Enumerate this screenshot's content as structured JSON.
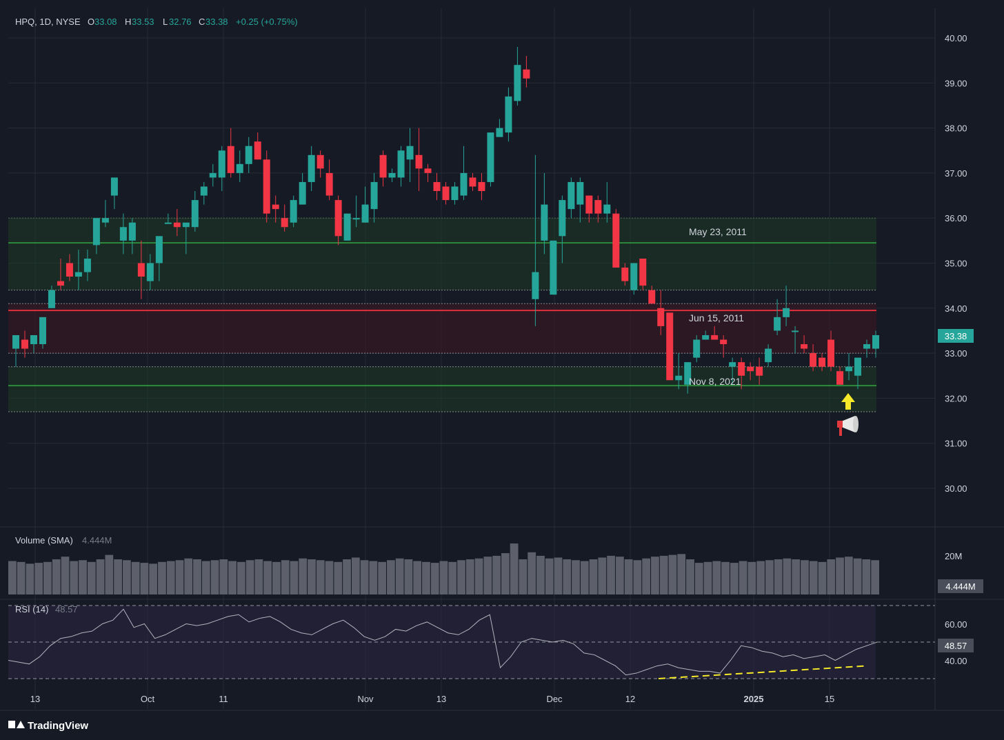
{
  "header": {
    "symbol": "HPQ, 1D, NYSE",
    "open_label": "O",
    "open": "33.08",
    "high_label": "H",
    "high": "33.53",
    "low_label": "L",
    "low": "32.76",
    "close_label": "C",
    "close": "33.38",
    "change": "+0.25 (+0.75%)"
  },
  "price_axis": {
    "ticks": [
      "40.00",
      "39.00",
      "38.00",
      "37.00",
      "36.00",
      "35.00",
      "34.00",
      "33.00",
      "32.00",
      "31.00",
      "30.00"
    ],
    "last_price": "33.38"
  },
  "zones": [
    {
      "label": "May 23, 2011",
      "color": "#1b5e20"
    },
    {
      "label": "Jun 15, 2011",
      "color": "#7b1a24"
    },
    {
      "label": "Nov 8, 2021",
      "color": "#1b5e20"
    }
  ],
  "volume_panel": {
    "title": "Volume (SMA)",
    "value": "4.444M",
    "axis_tick": "20M",
    "badge": "4.444M"
  },
  "rsi_panel": {
    "title": "RSI (14)",
    "value": "48.57",
    "ticks": [
      "60.00",
      "40.00"
    ],
    "badge": "48.57"
  },
  "time_axis": [
    "13",
    "Oct",
    "11",
    "Nov",
    "13",
    "Dec",
    "12",
    "2025",
    "15"
  ],
  "branding": {
    "logo": "TradingView"
  },
  "colors": {
    "up": "#26a69a",
    "down": "#f23645",
    "background": "#161a25",
    "grid": "#252a36",
    "text": "#d1d4dc",
    "annotation_arrow": "#f5e92a"
  },
  "icons": [
    "arrow-up-icon",
    "megaphone-icon"
  ],
  "chart_data": {
    "type": "candlestick",
    "ylim": [
      29.2,
      40.4
    ],
    "candles": [
      {
        "o": 33.1,
        "h": 33.4,
        "l": 32.7,
        "c": 33.4
      },
      {
        "o": 33.3,
        "h": 33.5,
        "l": 32.9,
        "c": 33.1
      },
      {
        "o": 33.2,
        "h": 33.4,
        "l": 33.0,
        "c": 33.4
      },
      {
        "o": 33.2,
        "h": 33.8,
        "l": 33.1,
        "c": 33.8
      },
      {
        "o": 34.0,
        "h": 34.5,
        "l": 34.0,
        "c": 34.4
      },
      {
        "o": 34.6,
        "h": 35.1,
        "l": 34.4,
        "c": 34.5
      },
      {
        "o": 35.0,
        "h": 35.2,
        "l": 34.6,
        "c": 34.7
      },
      {
        "o": 34.7,
        "h": 35.3,
        "l": 34.4,
        "c": 34.8
      },
      {
        "o": 34.8,
        "h": 35.3,
        "l": 34.6,
        "c": 35.1
      },
      {
        "o": 35.4,
        "h": 36.0,
        "l": 35.2,
        "c": 36.0
      },
      {
        "o": 35.9,
        "h": 36.4,
        "l": 35.8,
        "c": 36.0
      },
      {
        "o": 36.5,
        "h": 36.9,
        "l": 36.2,
        "c": 36.9
      },
      {
        "o": 35.5,
        "h": 36.1,
        "l": 35.2,
        "c": 35.8
      },
      {
        "o": 35.5,
        "h": 36.0,
        "l": 35.2,
        "c": 35.9
      },
      {
        "o": 35.0,
        "h": 35.5,
        "l": 34.2,
        "c": 34.7
      },
      {
        "o": 34.6,
        "h": 35.2,
        "l": 34.4,
        "c": 35.0
      },
      {
        "o": 35.0,
        "h": 35.6,
        "l": 34.6,
        "c": 35.6
      },
      {
        "o": 35.9,
        "h": 36.1,
        "l": 35.9,
        "c": 35.9
      },
      {
        "o": 35.9,
        "h": 36.2,
        "l": 35.6,
        "c": 35.8
      },
      {
        "o": 35.8,
        "h": 35.9,
        "l": 35.2,
        "c": 35.9
      },
      {
        "o": 35.8,
        "h": 36.6,
        "l": 35.7,
        "c": 36.4
      },
      {
        "o": 36.5,
        "h": 36.8,
        "l": 36.3,
        "c": 36.7
      },
      {
        "o": 36.9,
        "h": 37.2,
        "l": 36.7,
        "c": 37.0
      },
      {
        "o": 36.9,
        "h": 37.6,
        "l": 36.6,
        "c": 37.5
      },
      {
        "o": 37.6,
        "h": 38.0,
        "l": 36.9,
        "c": 37.0
      },
      {
        "o": 37.0,
        "h": 37.5,
        "l": 36.8,
        "c": 37.2
      },
      {
        "o": 37.2,
        "h": 37.8,
        "l": 37.0,
        "c": 37.6
      },
      {
        "o": 37.7,
        "h": 37.9,
        "l": 37.3,
        "c": 37.3
      },
      {
        "o": 37.3,
        "h": 37.5,
        "l": 35.9,
        "c": 36.1
      },
      {
        "o": 36.3,
        "h": 36.5,
        "l": 35.9,
        "c": 36.2
      },
      {
        "o": 36.0,
        "h": 36.3,
        "l": 35.7,
        "c": 35.8
      },
      {
        "o": 35.9,
        "h": 36.5,
        "l": 35.8,
        "c": 36.4
      },
      {
        "o": 36.3,
        "h": 37.0,
        "l": 36.3,
        "c": 36.8
      },
      {
        "o": 36.8,
        "h": 37.6,
        "l": 36.6,
        "c": 37.4
      },
      {
        "o": 37.4,
        "h": 37.5,
        "l": 36.9,
        "c": 37.1
      },
      {
        "o": 37.0,
        "h": 37.3,
        "l": 36.4,
        "c": 36.5
      },
      {
        "o": 36.4,
        "h": 36.5,
        "l": 35.4,
        "c": 35.6
      },
      {
        "o": 35.5,
        "h": 36.1,
        "l": 35.5,
        "c": 36.1
      },
      {
        "o": 36.0,
        "h": 36.5,
        "l": 35.8,
        "c": 36.0
      },
      {
        "o": 35.9,
        "h": 36.7,
        "l": 35.9,
        "c": 36.3
      },
      {
        "o": 36.2,
        "h": 37.0,
        "l": 35.9,
        "c": 36.8
      },
      {
        "o": 37.4,
        "h": 37.5,
        "l": 36.7,
        "c": 36.9
      },
      {
        "o": 36.9,
        "h": 37.1,
        "l": 36.8,
        "c": 37.0
      },
      {
        "o": 36.9,
        "h": 37.6,
        "l": 36.7,
        "c": 37.5
      },
      {
        "o": 37.3,
        "h": 38.0,
        "l": 36.8,
        "c": 37.6
      },
      {
        "o": 37.4,
        "h": 38.0,
        "l": 36.6,
        "c": 37.1
      },
      {
        "o": 37.1,
        "h": 37.2,
        "l": 36.8,
        "c": 37.0
      },
      {
        "o": 36.8,
        "h": 37.0,
        "l": 36.4,
        "c": 36.6
      },
      {
        "o": 36.7,
        "h": 36.8,
        "l": 36.3,
        "c": 36.4
      },
      {
        "o": 36.4,
        "h": 36.8,
        "l": 36.3,
        "c": 36.7
      },
      {
        "o": 36.5,
        "h": 37.6,
        "l": 36.4,
        "c": 37.0
      },
      {
        "o": 36.9,
        "h": 37.0,
        "l": 36.6,
        "c": 36.7
      },
      {
        "o": 36.8,
        "h": 37.0,
        "l": 36.4,
        "c": 36.6
      },
      {
        "o": 36.8,
        "h": 37.9,
        "l": 36.7,
        "c": 37.9
      },
      {
        "o": 37.8,
        "h": 38.2,
        "l": 37.8,
        "c": 38.0
      },
      {
        "o": 37.9,
        "h": 38.9,
        "l": 37.7,
        "c": 38.7
      },
      {
        "o": 38.6,
        "h": 39.8,
        "l": 38.5,
        "c": 39.4
      },
      {
        "o": 39.3,
        "h": 39.6,
        "l": 38.9,
        "c": 39.1
      },
      {
        "o": 34.2,
        "h": 37.4,
        "l": 33.6,
        "c": 34.8
      },
      {
        "o": 35.5,
        "h": 37.0,
        "l": 35.2,
        "c": 36.3
      },
      {
        "o": 34.3,
        "h": 35.5,
        "l": 34.3,
        "c": 35.5
      },
      {
        "o": 35.6,
        "h": 36.5,
        "l": 35.0,
        "c": 36.4
      },
      {
        "o": 36.2,
        "h": 36.9,
        "l": 36.0,
        "c": 36.8
      },
      {
        "o": 36.3,
        "h": 36.9,
        "l": 35.9,
        "c": 36.8
      },
      {
        "o": 36.5,
        "h": 36.5,
        "l": 35.9,
        "c": 36.1
      },
      {
        "o": 36.4,
        "h": 36.5,
        "l": 35.9,
        "c": 36.1
      },
      {
        "o": 36.1,
        "h": 36.8,
        "l": 35.9,
        "c": 36.3
      },
      {
        "o": 36.1,
        "h": 36.2,
        "l": 34.9,
        "c": 34.9
      },
      {
        "o": 34.9,
        "h": 35.0,
        "l": 34.5,
        "c": 34.6
      },
      {
        "o": 34.4,
        "h": 35.0,
        "l": 34.3,
        "c": 35.0
      },
      {
        "o": 35.1,
        "h": 35.1,
        "l": 34.4,
        "c": 34.5
      },
      {
        "o": 34.4,
        "h": 34.5,
        "l": 34.1,
        "c": 34.1
      },
      {
        "o": 34.0,
        "h": 34.4,
        "l": 33.4,
        "c": 33.6
      },
      {
        "o": 33.9,
        "h": 33.9,
        "l": 32.4,
        "c": 32.4
      },
      {
        "o": 32.4,
        "h": 33.0,
        "l": 32.2,
        "c": 32.5
      },
      {
        "o": 32.3,
        "h": 32.8,
        "l": 32.1,
        "c": 32.8
      },
      {
        "o": 32.9,
        "h": 33.4,
        "l": 32.8,
        "c": 33.3
      },
      {
        "o": 33.3,
        "h": 33.5,
        "l": 33.3,
        "c": 33.4
      },
      {
        "o": 33.4,
        "h": 33.6,
        "l": 33.3,
        "c": 33.3
      },
      {
        "o": 33.3,
        "h": 33.4,
        "l": 32.9,
        "c": 33.2
      },
      {
        "o": 32.7,
        "h": 32.9,
        "l": 32.3,
        "c": 32.8
      },
      {
        "o": 32.8,
        "h": 32.9,
        "l": 32.2,
        "c": 32.5
      },
      {
        "o": 32.7,
        "h": 32.8,
        "l": 32.4,
        "c": 32.6
      },
      {
        "o": 32.7,
        "h": 32.9,
        "l": 32.3,
        "c": 32.5
      },
      {
        "o": 32.8,
        "h": 33.2,
        "l": 32.7,
        "c": 33.1
      },
      {
        "o": 33.5,
        "h": 34.2,
        "l": 33.4,
        "c": 33.8
      },
      {
        "o": 33.8,
        "h": 34.5,
        "l": 33.6,
        "c": 34.0
      },
      {
        "o": 33.5,
        "h": 33.6,
        "l": 33.0,
        "c": 33.5
      },
      {
        "o": 33.2,
        "h": 33.4,
        "l": 33.0,
        "c": 33.1
      },
      {
        "o": 33.0,
        "h": 33.2,
        "l": 32.6,
        "c": 32.7
      },
      {
        "o": 32.9,
        "h": 33.0,
        "l": 32.6,
        "c": 32.7
      },
      {
        "o": 33.3,
        "h": 33.5,
        "l": 32.6,
        "c": 32.7
      },
      {
        "o": 32.6,
        "h": 32.7,
        "l": 32.3,
        "c": 32.3
      },
      {
        "o": 32.6,
        "h": 33.0,
        "l": 32.4,
        "c": 32.7
      },
      {
        "o": 32.5,
        "h": 32.9,
        "l": 32.2,
        "c": 32.9
      },
      {
        "o": 33.1,
        "h": 33.3,
        "l": 32.9,
        "c": 33.2
      },
      {
        "o": 33.1,
        "h": 33.5,
        "l": 32.9,
        "c": 33.4
      }
    ],
    "volume": [
      38,
      37,
      35,
      36,
      37,
      40,
      43,
      38,
      39,
      37,
      40,
      45,
      40,
      39,
      37,
      36,
      35,
      37,
      38,
      39,
      41,
      40,
      38,
      39,
      40,
      38,
      37,
      39,
      40,
      38,
      37,
      39,
      38,
      41,
      40,
      39,
      38,
      37,
      40,
      42,
      39,
      38,
      37,
      39,
      41,
      40,
      38,
      37,
      36,
      38,
      37,
      39,
      40,
      41,
      43,
      44,
      47,
      58,
      40,
      48,
      44,
      41,
      42,
      40,
      39,
      38,
      40,
      42,
      44,
      43,
      40,
      39,
      41,
      43,
      44,
      45,
      46,
      40,
      36,
      37,
      38,
      37,
      36,
      38,
      37,
      38,
      39,
      40,
      41,
      40,
      39,
      38,
      37,
      40,
      42,
      43,
      41,
      40,
      39
    ],
    "rsi": [
      40,
      39,
      38,
      42,
      48,
      52,
      53,
      55,
      56,
      60,
      62,
      68,
      58,
      60,
      52,
      54,
      57,
      60,
      59,
      60,
      62,
      64,
      65,
      61,
      63,
      64,
      61,
      57,
      55,
      54,
      57,
      60,
      62,
      58,
      53,
      51,
      53,
      57,
      56,
      59,
      61,
      58,
      55,
      54,
      57,
      62,
      65,
      36,
      42,
      50,
      52,
      51,
      50,
      51,
      49,
      44,
      43,
      40,
      37,
      32,
      33,
      35,
      37,
      38,
      36,
      35,
      34,
      34,
      33,
      40,
      48,
      47,
      45,
      44,
      42,
      43,
      41,
      42,
      43,
      40,
      43,
      46,
      48,
      50
    ],
    "rsi_range": [
      30,
      70
    ]
  }
}
